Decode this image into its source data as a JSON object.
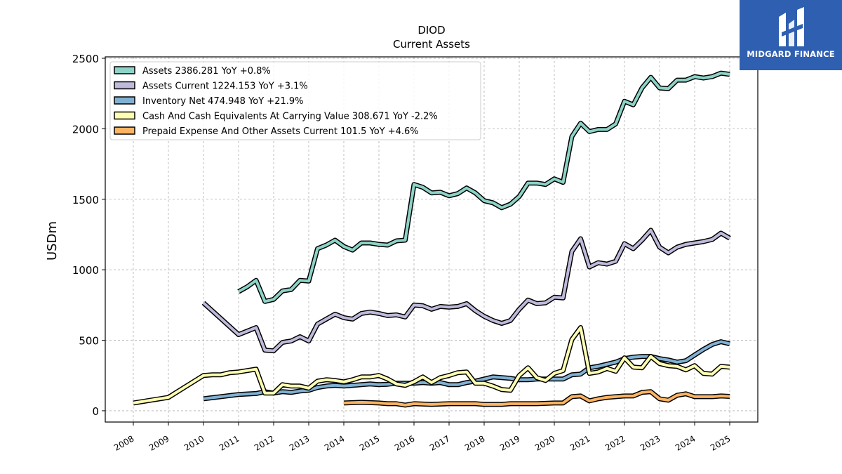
{
  "chart_data": {
    "type": "line",
    "title": "DIOD",
    "subtitle": "Current  Assets",
    "xlabel": "",
    "ylabel": "USDm",
    "xlim": [
      2007.2,
      2025.8
    ],
    "ylim": [
      -80,
      2510
    ],
    "yticks": [
      0,
      500,
      1000,
      1500,
      2000,
      2500
    ],
    "xticks": [
      "2008",
      "2009",
      "2010",
      "2011",
      "2012",
      "2013",
      "2014",
      "2015",
      "2016",
      "2017",
      "2018",
      "2019",
      "2020",
      "2021",
      "2022",
      "2023",
      "2024",
      "2025"
    ],
    "grid": true,
    "legend_position": "top-left",
    "series": [
      {
        "name": "Assets  2386.281 YoY +0.8%",
        "color": "#8dd3c7",
        "points": [
          [
            2011.0,
            845
          ],
          [
            2011.25,
            880
          ],
          [
            2011.5,
            925
          ],
          [
            2011.75,
            775
          ],
          [
            2012.0,
            790
          ],
          [
            2012.25,
            850
          ],
          [
            2012.5,
            860
          ],
          [
            2012.75,
            925
          ],
          [
            2013.0,
            920
          ],
          [
            2013.25,
            1150
          ],
          [
            2013.5,
            1175
          ],
          [
            2013.75,
            1210
          ],
          [
            2014.0,
            1165
          ],
          [
            2014.25,
            1140
          ],
          [
            2014.5,
            1190
          ],
          [
            2014.75,
            1190
          ],
          [
            2015.0,
            1180
          ],
          [
            2015.25,
            1175
          ],
          [
            2015.5,
            1205
          ],
          [
            2015.75,
            1210
          ],
          [
            2016.0,
            1605
          ],
          [
            2016.25,
            1585
          ],
          [
            2016.5,
            1545
          ],
          [
            2016.75,
            1550
          ],
          [
            2017.0,
            1525
          ],
          [
            2017.25,
            1540
          ],
          [
            2017.5,
            1580
          ],
          [
            2017.75,
            1545
          ],
          [
            2018.0,
            1490
          ],
          [
            2018.25,
            1475
          ],
          [
            2018.5,
            1440
          ],
          [
            2018.75,
            1465
          ],
          [
            2019.0,
            1520
          ],
          [
            2019.25,
            1615
          ],
          [
            2019.5,
            1615
          ],
          [
            2019.75,
            1605
          ],
          [
            2020.0,
            1645
          ],
          [
            2020.25,
            1620
          ],
          [
            2020.5,
            1945
          ],
          [
            2020.75,
            2040
          ],
          [
            2021.0,
            1980
          ],
          [
            2021.25,
            1995
          ],
          [
            2021.5,
            1995
          ],
          [
            2021.75,
            2035
          ],
          [
            2022.0,
            2195
          ],
          [
            2022.25,
            2170
          ],
          [
            2022.5,
            2290
          ],
          [
            2022.75,
            2365
          ],
          [
            2023.0,
            2290
          ],
          [
            2023.25,
            2285
          ],
          [
            2023.5,
            2345
          ],
          [
            2023.75,
            2345
          ],
          [
            2024.0,
            2370
          ],
          [
            2024.25,
            2360
          ],
          [
            2024.5,
            2370
          ],
          [
            2024.75,
            2395
          ],
          [
            2025.0,
            2386
          ]
        ]
      },
      {
        "name": "Assets Current  1224.153 YoY +3.1%",
        "color": "#bebada",
        "points": [
          [
            2010.0,
            765
          ],
          [
            2011.0,
            540
          ],
          [
            2011.25,
            565
          ],
          [
            2011.5,
            590
          ],
          [
            2011.75,
            430
          ],
          [
            2012.0,
            425
          ],
          [
            2012.25,
            485
          ],
          [
            2012.5,
            495
          ],
          [
            2012.75,
            525
          ],
          [
            2013.0,
            495
          ],
          [
            2013.25,
            615
          ],
          [
            2013.5,
            650
          ],
          [
            2013.75,
            685
          ],
          [
            2014.0,
            660
          ],
          [
            2014.25,
            650
          ],
          [
            2014.5,
            690
          ],
          [
            2014.75,
            700
          ],
          [
            2015.0,
            690
          ],
          [
            2015.25,
            675
          ],
          [
            2015.5,
            680
          ],
          [
            2015.75,
            665
          ],
          [
            2016.0,
            750
          ],
          [
            2016.25,
            745
          ],
          [
            2016.5,
            720
          ],
          [
            2016.75,
            740
          ],
          [
            2017.0,
            735
          ],
          [
            2017.25,
            740
          ],
          [
            2017.5,
            760
          ],
          [
            2017.75,
            710
          ],
          [
            2018.0,
            670
          ],
          [
            2018.25,
            640
          ],
          [
            2018.5,
            620
          ],
          [
            2018.75,
            640
          ],
          [
            2019.0,
            720
          ],
          [
            2019.25,
            785
          ],
          [
            2019.5,
            760
          ],
          [
            2019.75,
            765
          ],
          [
            2020.0,
            805
          ],
          [
            2020.25,
            800
          ],
          [
            2020.5,
            1130
          ],
          [
            2020.75,
            1220
          ],
          [
            2021.0,
            1020
          ],
          [
            2021.25,
            1050
          ],
          [
            2021.5,
            1040
          ],
          [
            2021.75,
            1060
          ],
          [
            2022.0,
            1185
          ],
          [
            2022.25,
            1150
          ],
          [
            2022.5,
            1210
          ],
          [
            2022.75,
            1280
          ],
          [
            2023.0,
            1160
          ],
          [
            2023.25,
            1120
          ],
          [
            2023.5,
            1160
          ],
          [
            2023.75,
            1180
          ],
          [
            2024.0,
            1190
          ],
          [
            2024.25,
            1200
          ],
          [
            2024.5,
            1215
          ],
          [
            2024.75,
            1260
          ],
          [
            2025.0,
            1224
          ]
        ]
      },
      {
        "name": "Inventory Net  474.948 YoY +21.9%",
        "color": "#80b1d3",
        "points": [
          [
            2010.0,
            85
          ],
          [
            2011.0,
            115
          ],
          [
            2011.5,
            122
          ],
          [
            2011.75,
            135
          ],
          [
            2012.0,
            125
          ],
          [
            2012.25,
            135
          ],
          [
            2012.5,
            130
          ],
          [
            2012.75,
            140
          ],
          [
            2013.0,
            145
          ],
          [
            2013.25,
            165
          ],
          [
            2013.5,
            175
          ],
          [
            2013.75,
            180
          ],
          [
            2014.0,
            175
          ],
          [
            2014.25,
            180
          ],
          [
            2014.5,
            185
          ],
          [
            2014.75,
            190
          ],
          [
            2015.0,
            185
          ],
          [
            2015.25,
            188
          ],
          [
            2015.5,
            195
          ],
          [
            2015.75,
            195
          ],
          [
            2016.0,
            195
          ],
          [
            2016.25,
            200
          ],
          [
            2016.5,
            195
          ],
          [
            2016.75,
            200
          ],
          [
            2017.0,
            185
          ],
          [
            2017.25,
            185
          ],
          [
            2017.5,
            200
          ],
          [
            2017.75,
            210
          ],
          [
            2018.0,
            225
          ],
          [
            2018.25,
            240
          ],
          [
            2018.5,
            235
          ],
          [
            2018.75,
            230
          ],
          [
            2019.0,
            220
          ],
          [
            2019.25,
            220
          ],
          [
            2019.5,
            225
          ],
          [
            2019.75,
            225
          ],
          [
            2020.0,
            225
          ],
          [
            2020.25,
            225
          ],
          [
            2020.5,
            255
          ],
          [
            2020.75,
            260
          ],
          [
            2021.0,
            305
          ],
          [
            2021.25,
            315
          ],
          [
            2021.5,
            330
          ],
          [
            2021.75,
            345
          ],
          [
            2022.0,
            370
          ],
          [
            2022.25,
            380
          ],
          [
            2022.5,
            385
          ],
          [
            2022.75,
            385
          ],
          [
            2023.0,
            370
          ],
          [
            2023.25,
            360
          ],
          [
            2023.5,
            345
          ],
          [
            2023.75,
            355
          ],
          [
            2024.0,
            395
          ],
          [
            2024.25,
            435
          ],
          [
            2024.5,
            470
          ],
          [
            2024.75,
            490
          ],
          [
            2025.0,
            475
          ]
        ]
      },
      {
        "name": "Cash And Cash Equivalents At Carrying Value  308.671 YoY -2.2%",
        "color": "#ffffb3",
        "points": [
          [
            2008.0,
            55
          ],
          [
            2009.0,
            95
          ],
          [
            2010.0,
            250
          ],
          [
            2010.25,
            255
          ],
          [
            2010.5,
            255
          ],
          [
            2010.75,
            270
          ],
          [
            2011.0,
            275
          ],
          [
            2011.25,
            285
          ],
          [
            2011.5,
            295
          ],
          [
            2011.75,
            125
          ],
          [
            2012.0,
            125
          ],
          [
            2012.25,
            185
          ],
          [
            2012.5,
            175
          ],
          [
            2012.75,
            175
          ],
          [
            2013.0,
            160
          ],
          [
            2013.25,
            210
          ],
          [
            2013.5,
            220
          ],
          [
            2013.75,
            215
          ],
          [
            2014.0,
            205
          ],
          [
            2014.25,
            220
          ],
          [
            2014.5,
            240
          ],
          [
            2014.75,
            240
          ],
          [
            2015.0,
            250
          ],
          [
            2015.25,
            225
          ],
          [
            2015.5,
            190
          ],
          [
            2015.75,
            180
          ],
          [
            2016.0,
            205
          ],
          [
            2016.25,
            240
          ],
          [
            2016.5,
            200
          ],
          [
            2016.75,
            235
          ],
          [
            2017.0,
            250
          ],
          [
            2017.25,
            270
          ],
          [
            2017.5,
            275
          ],
          [
            2017.75,
            195
          ],
          [
            2018.0,
            195
          ],
          [
            2018.25,
            175
          ],
          [
            2018.5,
            150
          ],
          [
            2018.75,
            145
          ],
          [
            2019.0,
            250
          ],
          [
            2019.25,
            305
          ],
          [
            2019.5,
            235
          ],
          [
            2019.75,
            215
          ],
          [
            2020.0,
            265
          ],
          [
            2020.25,
            285
          ],
          [
            2020.5,
            505
          ],
          [
            2020.75,
            590
          ],
          [
            2021.0,
            265
          ],
          [
            2021.25,
            275
          ],
          [
            2021.5,
            300
          ],
          [
            2021.75,
            280
          ],
          [
            2022.0,
            375
          ],
          [
            2022.25,
            310
          ],
          [
            2022.5,
            305
          ],
          [
            2022.75,
            385
          ],
          [
            2023.0,
            335
          ],
          [
            2023.25,
            320
          ],
          [
            2023.5,
            315
          ],
          [
            2023.75,
            290
          ],
          [
            2024.0,
            320
          ],
          [
            2024.25,
            265
          ],
          [
            2024.5,
            260
          ],
          [
            2024.75,
            315
          ],
          [
            2025.0,
            309
          ]
        ]
      },
      {
        "name": "Prepaid Expense And Other Assets Current  101.5 YoY +4.6%",
        "color": "#fdb462",
        "points": [
          [
            2014.0,
            55
          ],
          [
            2014.5,
            60
          ],
          [
            2015.0,
            55
          ],
          [
            2015.25,
            50
          ],
          [
            2015.5,
            50
          ],
          [
            2015.75,
            40
          ],
          [
            2016.0,
            50
          ],
          [
            2016.5,
            45
          ],
          [
            2017.0,
            50
          ],
          [
            2017.5,
            50
          ],
          [
            2017.75,
            50
          ],
          [
            2018.0,
            45
          ],
          [
            2018.5,
            45
          ],
          [
            2018.75,
            50
          ],
          [
            2019.0,
            50
          ],
          [
            2019.5,
            50
          ],
          [
            2020.0,
            55
          ],
          [
            2020.25,
            55
          ],
          [
            2020.5,
            100
          ],
          [
            2020.75,
            105
          ],
          [
            2021.0,
            70
          ],
          [
            2021.25,
            85
          ],
          [
            2021.5,
            95
          ],
          [
            2021.75,
            100
          ],
          [
            2022.0,
            105
          ],
          [
            2022.25,
            105
          ],
          [
            2022.5,
            130
          ],
          [
            2022.75,
            135
          ],
          [
            2023.0,
            85
          ],
          [
            2023.25,
            75
          ],
          [
            2023.5,
            110
          ],
          [
            2023.75,
            120
          ],
          [
            2024.0,
            100
          ],
          [
            2024.25,
            100
          ],
          [
            2024.5,
            100
          ],
          [
            2024.75,
            105
          ],
          [
            2025.0,
            102
          ]
        ]
      }
    ]
  },
  "watermark": {
    "brand": "MIDGARD FINANCE"
  }
}
